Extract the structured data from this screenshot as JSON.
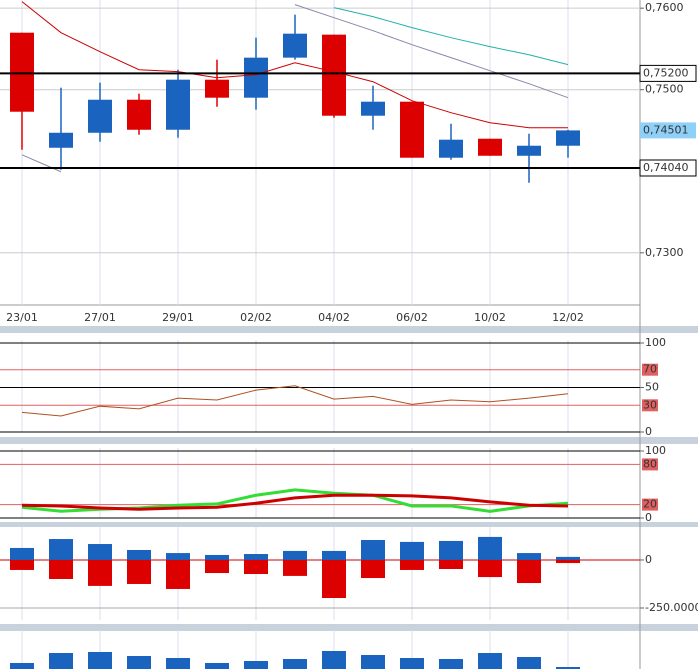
{
  "chart_data": [
    {
      "type": "candlestick",
      "categories": [
        "23/01",
        null,
        "27/01",
        null,
        "29/01",
        null,
        "02/02",
        null,
        "04/02",
        null,
        "06/02",
        null,
        "10/02",
        null,
        "12/02"
      ],
      "open": [
        0.75699,
        0.74288,
        0.74472,
        0.74877,
        0.74509,
        0.75123,
        0.74902,
        0.75393,
        0.75675,
        0.74681,
        0.74853,
        0.74166,
        0.74399,
        0.7419,
        0.74313
      ],
      "high": [
        0.75699,
        0.75025,
        0.75086,
        0.74951,
        0.75245,
        0.75368,
        0.75638,
        0.7592,
        0.75675,
        0.75049,
        0.74853,
        0.74583,
        0.74399,
        0.7446,
        0.74509
      ],
      "low": [
        0.74264,
        0.74018,
        0.74362,
        0.74448,
        0.74411,
        0.74791,
        0.74755,
        0.75368,
        0.74656,
        0.74509,
        0.74166,
        0.74141,
        0.7419,
        0.73859,
        0.74166
      ],
      "close": [
        0.7473,
        0.74472,
        0.74877,
        0.74509,
        0.75123,
        0.74902,
        0.75393,
        0.75687,
        0.74681,
        0.74853,
        0.74166,
        0.74387,
        0.7419,
        0.74313,
        0.74501
      ],
      "up_color": "#1a64c0",
      "down_color": "#dd0000",
      "series": [
        {
          "color": "#cc0000",
          "values": [
            0.7608,
            0.75699,
            0.75466,
            0.75245,
            0.75221,
            0.75147,
            0.75184,
            0.75331,
            0.75221,
            0.75098,
            0.74865,
            0.74718,
            0.74595,
            0.74534,
            0.74534
          ]
        },
        {
          "color": "#20b2aa",
          "values": [
            null,
            null,
            null,
            null,
            null,
            null,
            null,
            null,
            0.76006,
            0.75896,
            0.75761,
            0.75638,
            0.75528,
            0.75429,
            0.75307
          ]
        },
        {
          "color": "#8888aa",
          "values": [
            0.74202,
            0.73994,
            null,
            null,
            null,
            null,
            null,
            0.76043,
            0.75883,
            0.75724,
            0.75552,
            0.75393,
            0.75233,
            0.75074,
            0.74902
          ]
        }
      ],
      "levels": [
        {
          "value": 0.752,
          "label": "0,75200"
        },
        {
          "value": 0.7404,
          "label": "0,74040"
        }
      ],
      "last_price": {
        "value": 0.74501,
        "label": "0,74501"
      },
      "ylim": [
        0.7236,
        0.761
      ],
      "yticks": [
        {
          "value": 0.76,
          "label": "0,7600"
        },
        {
          "value": 0.75,
          "label": "0,7500"
        },
        {
          "value": 0.73,
          "label": "0,7300"
        }
      ],
      "grid": true
    },
    {
      "type": "line",
      "series": [
        {
          "color": "#b05020",
          "values": [
            22,
            18,
            29,
            26,
            38,
            36,
            47,
            52,
            37,
            40,
            31,
            36,
            34,
            38,
            43
          ]
        }
      ],
      "ylim": [
        0,
        100
      ],
      "yticks": [
        0,
        50,
        100
      ],
      "guides": [
        30,
        70
      ],
      "guide_color": "#e06060"
    },
    {
      "type": "line",
      "series": [
        {
          "color": "#33dd33",
          "values": [
            16,
            10,
            13,
            15,
            19,
            21,
            34,
            42,
            37,
            34,
            18,
            18,
            10,
            18,
            22
          ]
        },
        {
          "color": "#cc0000",
          "values": [
            19,
            18,
            15,
            13,
            15,
            16,
            22,
            30,
            34,
            34,
            33,
            30,
            24,
            19,
            18
          ]
        }
      ],
      "ylim": [
        0,
        100
      ],
      "yticks": [
        0,
        100
      ],
      "guides": [
        20,
        80
      ],
      "guide_color": "#e06060"
    },
    {
      "type": "bar",
      "series": [
        {
          "color": "#1a64c0",
          "values": [
            62500,
            109000,
            83000,
            52000,
            36000,
            26000,
            31000,
            47000,
            47000,
            104000,
            94000,
            99000,
            120000,
            36000,
            16000
          ]
        },
        {
          "color": "#dd0000",
          "values": [
            -52000,
            -99000,
            -135000,
            -125000,
            -151000,
            -68000,
            -73000,
            -83000,
            -198000,
            -94000,
            -52000,
            -47000,
            -89000,
            -120000,
            -16000
          ]
        }
      ],
      "ylim": [
        -312500,
        156000
      ],
      "yticks": [
        0,
        {
          "value": -250000,
          "label": "-250.0000"
        }
      ]
    },
    {
      "type": "bar",
      "series": [
        {
          "color": "#1a64c0",
          "values": [
            6,
            16,
            17,
            13,
            11,
            6,
            8,
            10,
            18,
            14,
            11,
            10,
            16,
            12,
            2
          ]
        }
      ],
      "ylim": [
        0,
        36
      ]
    }
  ]
}
